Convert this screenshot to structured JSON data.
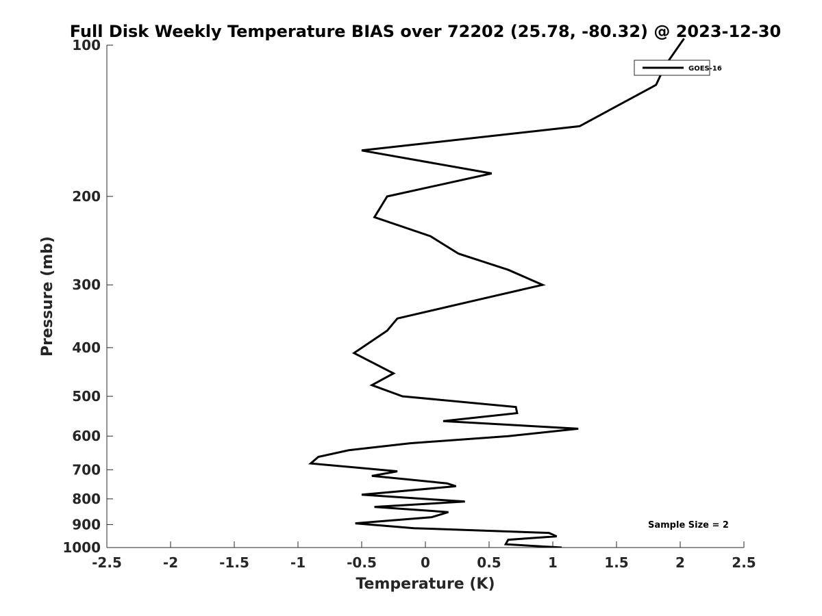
{
  "chart_data": {
    "type": "line",
    "title": "Full Disk Weekly Temperature BIAS over 72202 (25.78, -80.32) @ 2023-12-30",
    "xlabel": "Temperature (K)",
    "ylabel": "Pressure (mb)",
    "xlim": [
      -2.5,
      2.5
    ],
    "ylim": [
      100,
      1000
    ],
    "yscale": "log",
    "y_reversed": true,
    "grid": false,
    "x_ticks": [
      -2.5,
      -2,
      -1.5,
      -1,
      -0.5,
      0,
      0.5,
      1,
      1.5,
      2,
      2.5
    ],
    "x_tick_labels": [
      "-2.5",
      "-2",
      "-1.5",
      "-1",
      "-0.5",
      "0",
      "0.5",
      "1",
      "1.5",
      "2",
      "2.5"
    ],
    "y_ticks": [
      100,
      200,
      300,
      400,
      500,
      600,
      700,
      800,
      900,
      1000
    ],
    "y_tick_labels": [
      "100",
      "200",
      "300",
      "400",
      "500",
      "600",
      "700",
      "800",
      "900",
      "1000"
    ],
    "legend": {
      "position": "top-right",
      "entries": [
        "GOES-16"
      ]
    },
    "annotation": "Sample Size = 2",
    "series": [
      {
        "name": "GOES-16",
        "color": "#000000",
        "points": [
          [
            1.07,
            1000
          ],
          [
            0.63,
            985
          ],
          [
            0.65,
            965
          ],
          [
            1.03,
            950
          ],
          [
            0.97,
            935
          ],
          [
            -0.09,
            915
          ],
          [
            -0.55,
            895
          ],
          [
            0.05,
            870
          ],
          [
            0.18,
            850
          ],
          [
            -0.4,
            830
          ],
          [
            0.31,
            810
          ],
          [
            -0.5,
            785
          ],
          [
            0.24,
            755
          ],
          [
            0.17,
            745
          ],
          [
            -0.42,
            720
          ],
          [
            -0.22,
            705
          ],
          [
            -0.9,
            680
          ],
          [
            -0.84,
            660
          ],
          [
            -0.6,
            640
          ],
          [
            -0.12,
            620
          ],
          [
            0.65,
            600
          ],
          [
            1.2,
            580
          ],
          [
            0.14,
            560
          ],
          [
            0.72,
            540
          ],
          [
            0.71,
            525
          ],
          [
            -0.18,
            500
          ],
          [
            -0.42,
            475
          ],
          [
            -0.25,
            450
          ],
          [
            -0.56,
            410
          ],
          [
            -0.3,
            370
          ],
          [
            -0.22,
            350
          ],
          [
            0.44,
            320
          ],
          [
            0.92,
            300
          ],
          [
            0.65,
            280
          ],
          [
            0.26,
            260
          ],
          [
            0.04,
            240
          ],
          [
            -0.4,
            220
          ],
          [
            -0.3,
            200
          ],
          [
            0.52,
            180
          ],
          [
            -0.5,
            162
          ],
          [
            1.21,
            145
          ],
          [
            1.81,
            120
          ],
          [
            1.88,
            110
          ],
          [
            1.97,
            102
          ],
          [
            2.03,
            97
          ]
        ]
      }
    ]
  }
}
